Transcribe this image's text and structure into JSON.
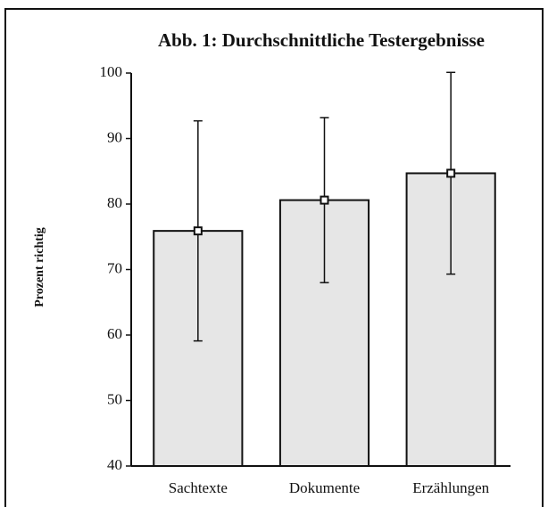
{
  "chart_data": {
    "type": "bar",
    "title": "Abb. 1: Durchschnittliche Testergebnisse",
    "ylabel": "Prozent richtig",
    "categories": [
      "Sachtexte",
      "Dokumente",
      "Erzählungen"
    ],
    "values": [
      75.9,
      80.6,
      84.7
    ],
    "errors": [
      16.8,
      12.6,
      15.4
    ],
    "color": "#e6e6e6",
    "ylim": [
      40,
      100
    ],
    "yticks": [
      40,
      50,
      60,
      70,
      80,
      90,
      100
    ],
    "grid": false
  }
}
